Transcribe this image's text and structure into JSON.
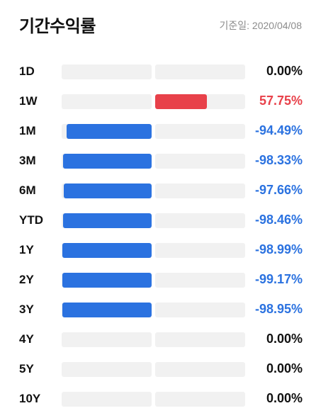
{
  "header": {
    "title": "기간수익률",
    "date_label": "기준일: 2020/04/08"
  },
  "colors": {
    "positive": "#e8414a",
    "negative": "#2b72e0",
    "zero_text": "#111111",
    "track": "#f1f1f1"
  },
  "chart_data": {
    "type": "bar",
    "title": "기간수익률",
    "categories": [
      "1D",
      "1W",
      "1M",
      "3M",
      "6M",
      "YTD",
      "1Y",
      "2Y",
      "3Y",
      "4Y",
      "5Y",
      "10Y"
    ],
    "values": [
      0.0,
      57.75,
      -94.49,
      -98.33,
      -97.66,
      -98.46,
      -98.99,
      -99.17,
      -98.95,
      0.0,
      0.0,
      0.0
    ],
    "value_labels": [
      "0.00%",
      "57.75%",
      "-94.49%",
      "-98.33%",
      "-97.66%",
      "-98.46%",
      "-98.99%",
      "-99.17%",
      "-98.95%",
      "0.00%",
      "0.00%",
      "0.00%"
    ],
    "unit": "%",
    "xlim": [
      -100,
      100
    ],
    "grid": false,
    "legend": "none"
  }
}
